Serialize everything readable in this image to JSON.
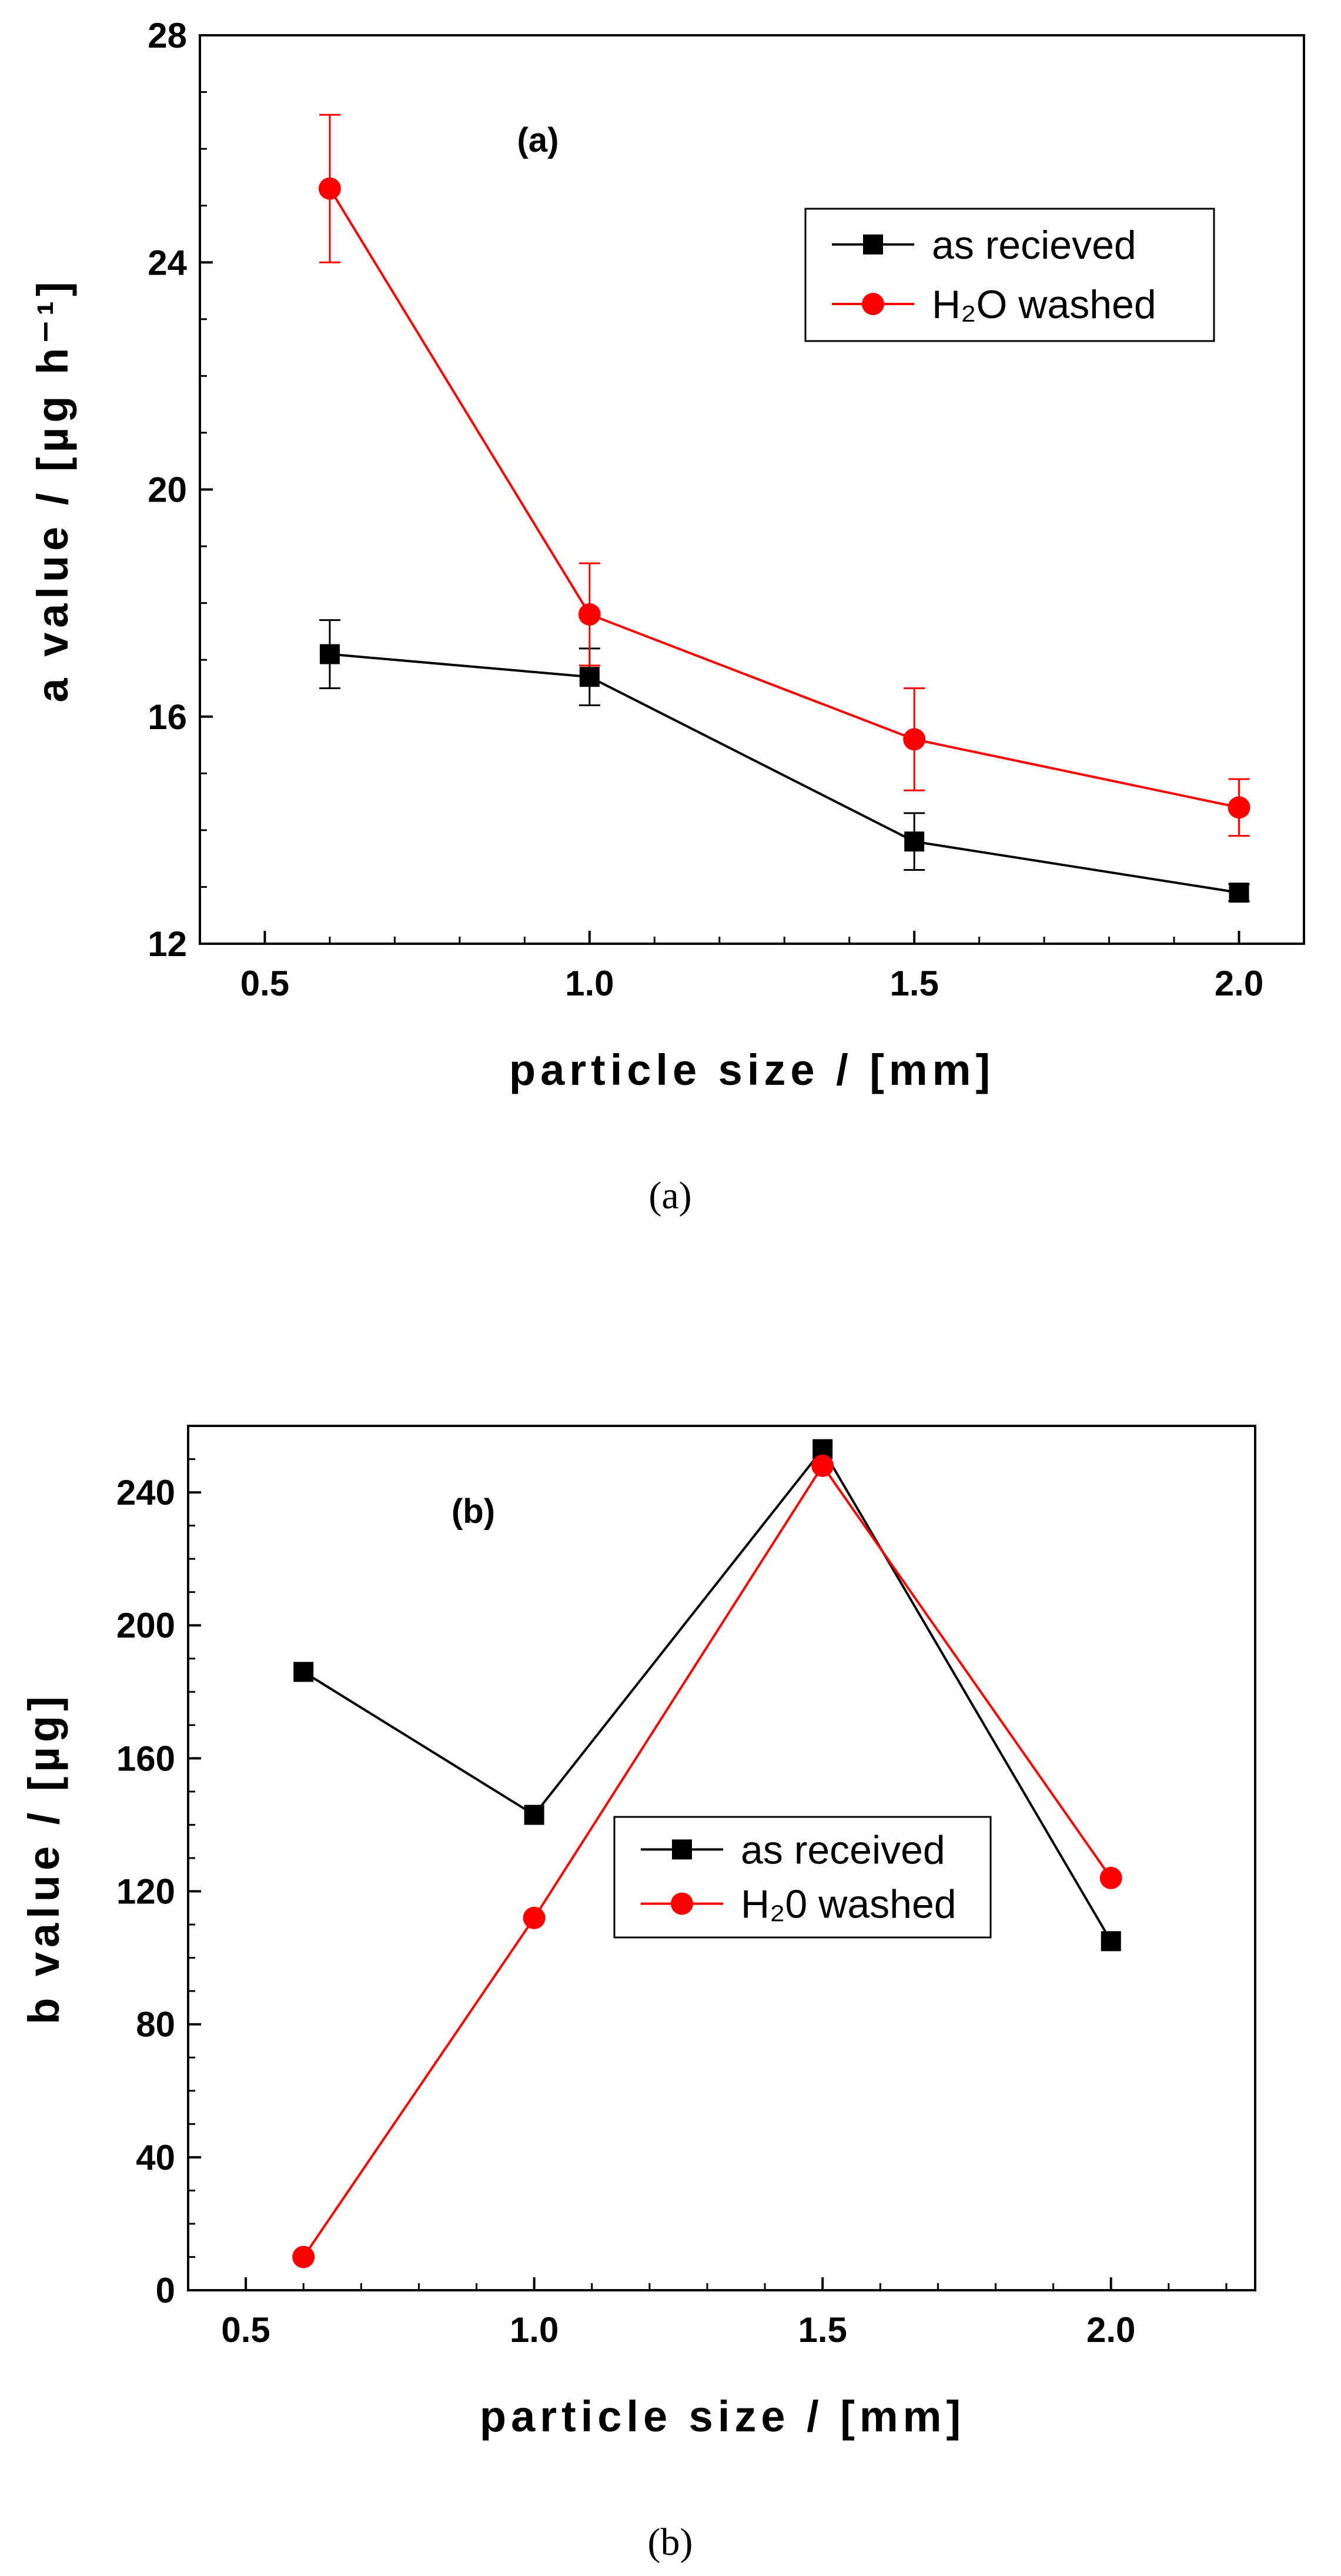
{
  "chart_data": [
    {
      "type": "line",
      "panel_label": "(a)",
      "caption": "(a)",
      "ylabel": "a value / [µg h⁻¹]",
      "xlabel": "particle size / [mm]",
      "xlim": [
        0.4,
        2.1
      ],
      "ylim": [
        12,
        28
      ],
      "x_ticks": [
        "0.5",
        "1.0",
        "1.5",
        "2.0"
      ],
      "y_ticks": [
        "12",
        "16",
        "20",
        "24",
        "28"
      ],
      "legend_position": "top-right",
      "series": [
        {
          "name": "as recieved",
          "color": "#000000",
          "marker": "square",
          "x": [
            0.6,
            1.0,
            1.5,
            2.0
          ],
          "y": [
            17.1,
            16.7,
            13.8,
            12.9
          ],
          "error": [
            0.6,
            0.5,
            0.5,
            0.15
          ]
        },
        {
          "name": "H₂O washed",
          "color": "#ff0000",
          "marker": "circle",
          "x": [
            0.6,
            1.0,
            1.5,
            2.0
          ],
          "y": [
            25.3,
            17.8,
            15.6,
            14.4
          ],
          "error": [
            1.3,
            0.9,
            0.9,
            0.5
          ]
        }
      ]
    },
    {
      "type": "line",
      "panel_label": "(b)",
      "caption": "(b)",
      "ylabel": "b value / [µg]",
      "xlabel": "particle size / [mm]",
      "xlim": [
        0.4,
        2.25
      ],
      "ylim": [
        0,
        260
      ],
      "x_ticks": [
        "0.5",
        "1.0",
        "1.5",
        "2.0"
      ],
      "y_ticks": [
        "0",
        "40",
        "80",
        "120",
        "160",
        "200",
        "240"
      ],
      "legend_position": "center",
      "series": [
        {
          "name": "as received",
          "color": "#000000",
          "marker": "square",
          "x": [
            0.6,
            1.0,
            1.5,
            2.0
          ],
          "y": [
            186,
            143,
            253,
            105
          ]
        },
        {
          "name": "H₂0 washed",
          "color": "#ff0000",
          "marker": "circle",
          "x": [
            0.6,
            1.0,
            1.5,
            2.0
          ],
          "y": [
            10,
            112,
            248,
            124
          ]
        }
      ]
    }
  ]
}
